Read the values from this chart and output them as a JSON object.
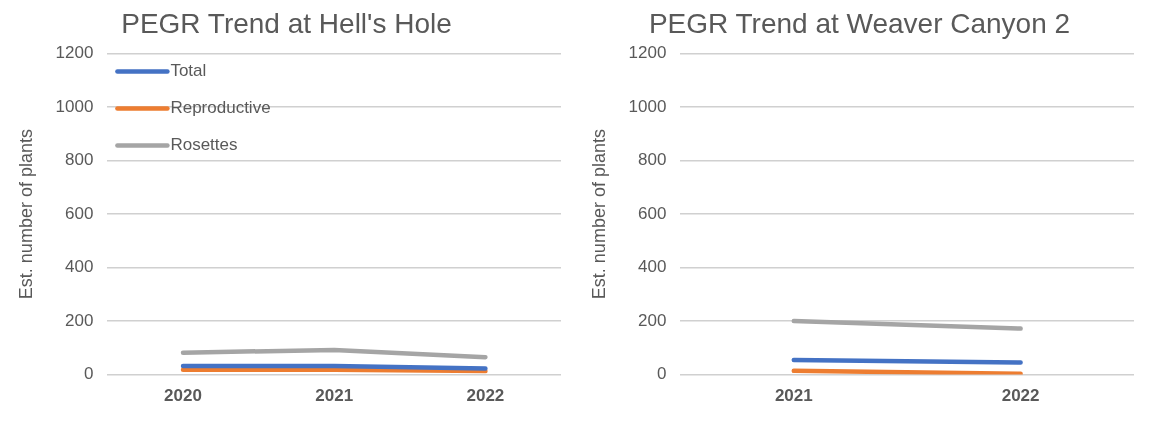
{
  "chart_data": [
    {
      "type": "line",
      "title": "PEGR Trend at Hell's Hole",
      "ylabel": "Est. number of plants",
      "categories": [
        "2020",
        "2021",
        "2022"
      ],
      "ylim": [
        0,
        1200
      ],
      "yticks": [
        0,
        200,
        400,
        600,
        800,
        1000,
        1200
      ],
      "grid": "y",
      "legend": "top left",
      "marker": "none",
      "line_style": "solid",
      "series": [
        {
          "name": "Total",
          "color": "#4472c4",
          "values": [
            32,
            32,
            23
          ]
        },
        {
          "name": "Reproductive",
          "color": "#ed7d31",
          "values": [
            18,
            18,
            13
          ]
        },
        {
          "name": "Rosettes",
          "color": "#a5a5a5",
          "values": [
            82,
            92,
            65
          ]
        }
      ]
    },
    {
      "type": "line",
      "title": "PEGR Trend at Weaver Canyon 2",
      "ylabel": "Est. number of plants",
      "categories": [
        "2021",
        "2022"
      ],
      "ylim": [
        0,
        1200
      ],
      "yticks": [
        0,
        200,
        400,
        600,
        800,
        1000,
        1200
      ],
      "grid": "y",
      "legend": false,
      "marker": "none",
      "line_style": "solid",
      "series": [
        {
          "color": "#4472c4",
          "values": [
            55,
            45
          ]
        },
        {
          "color": "#ed7d31",
          "values": [
            14,
            3
          ]
        },
        {
          "color": "#a5a5a5",
          "values": [
            200,
            172
          ]
        }
      ]
    }
  ]
}
